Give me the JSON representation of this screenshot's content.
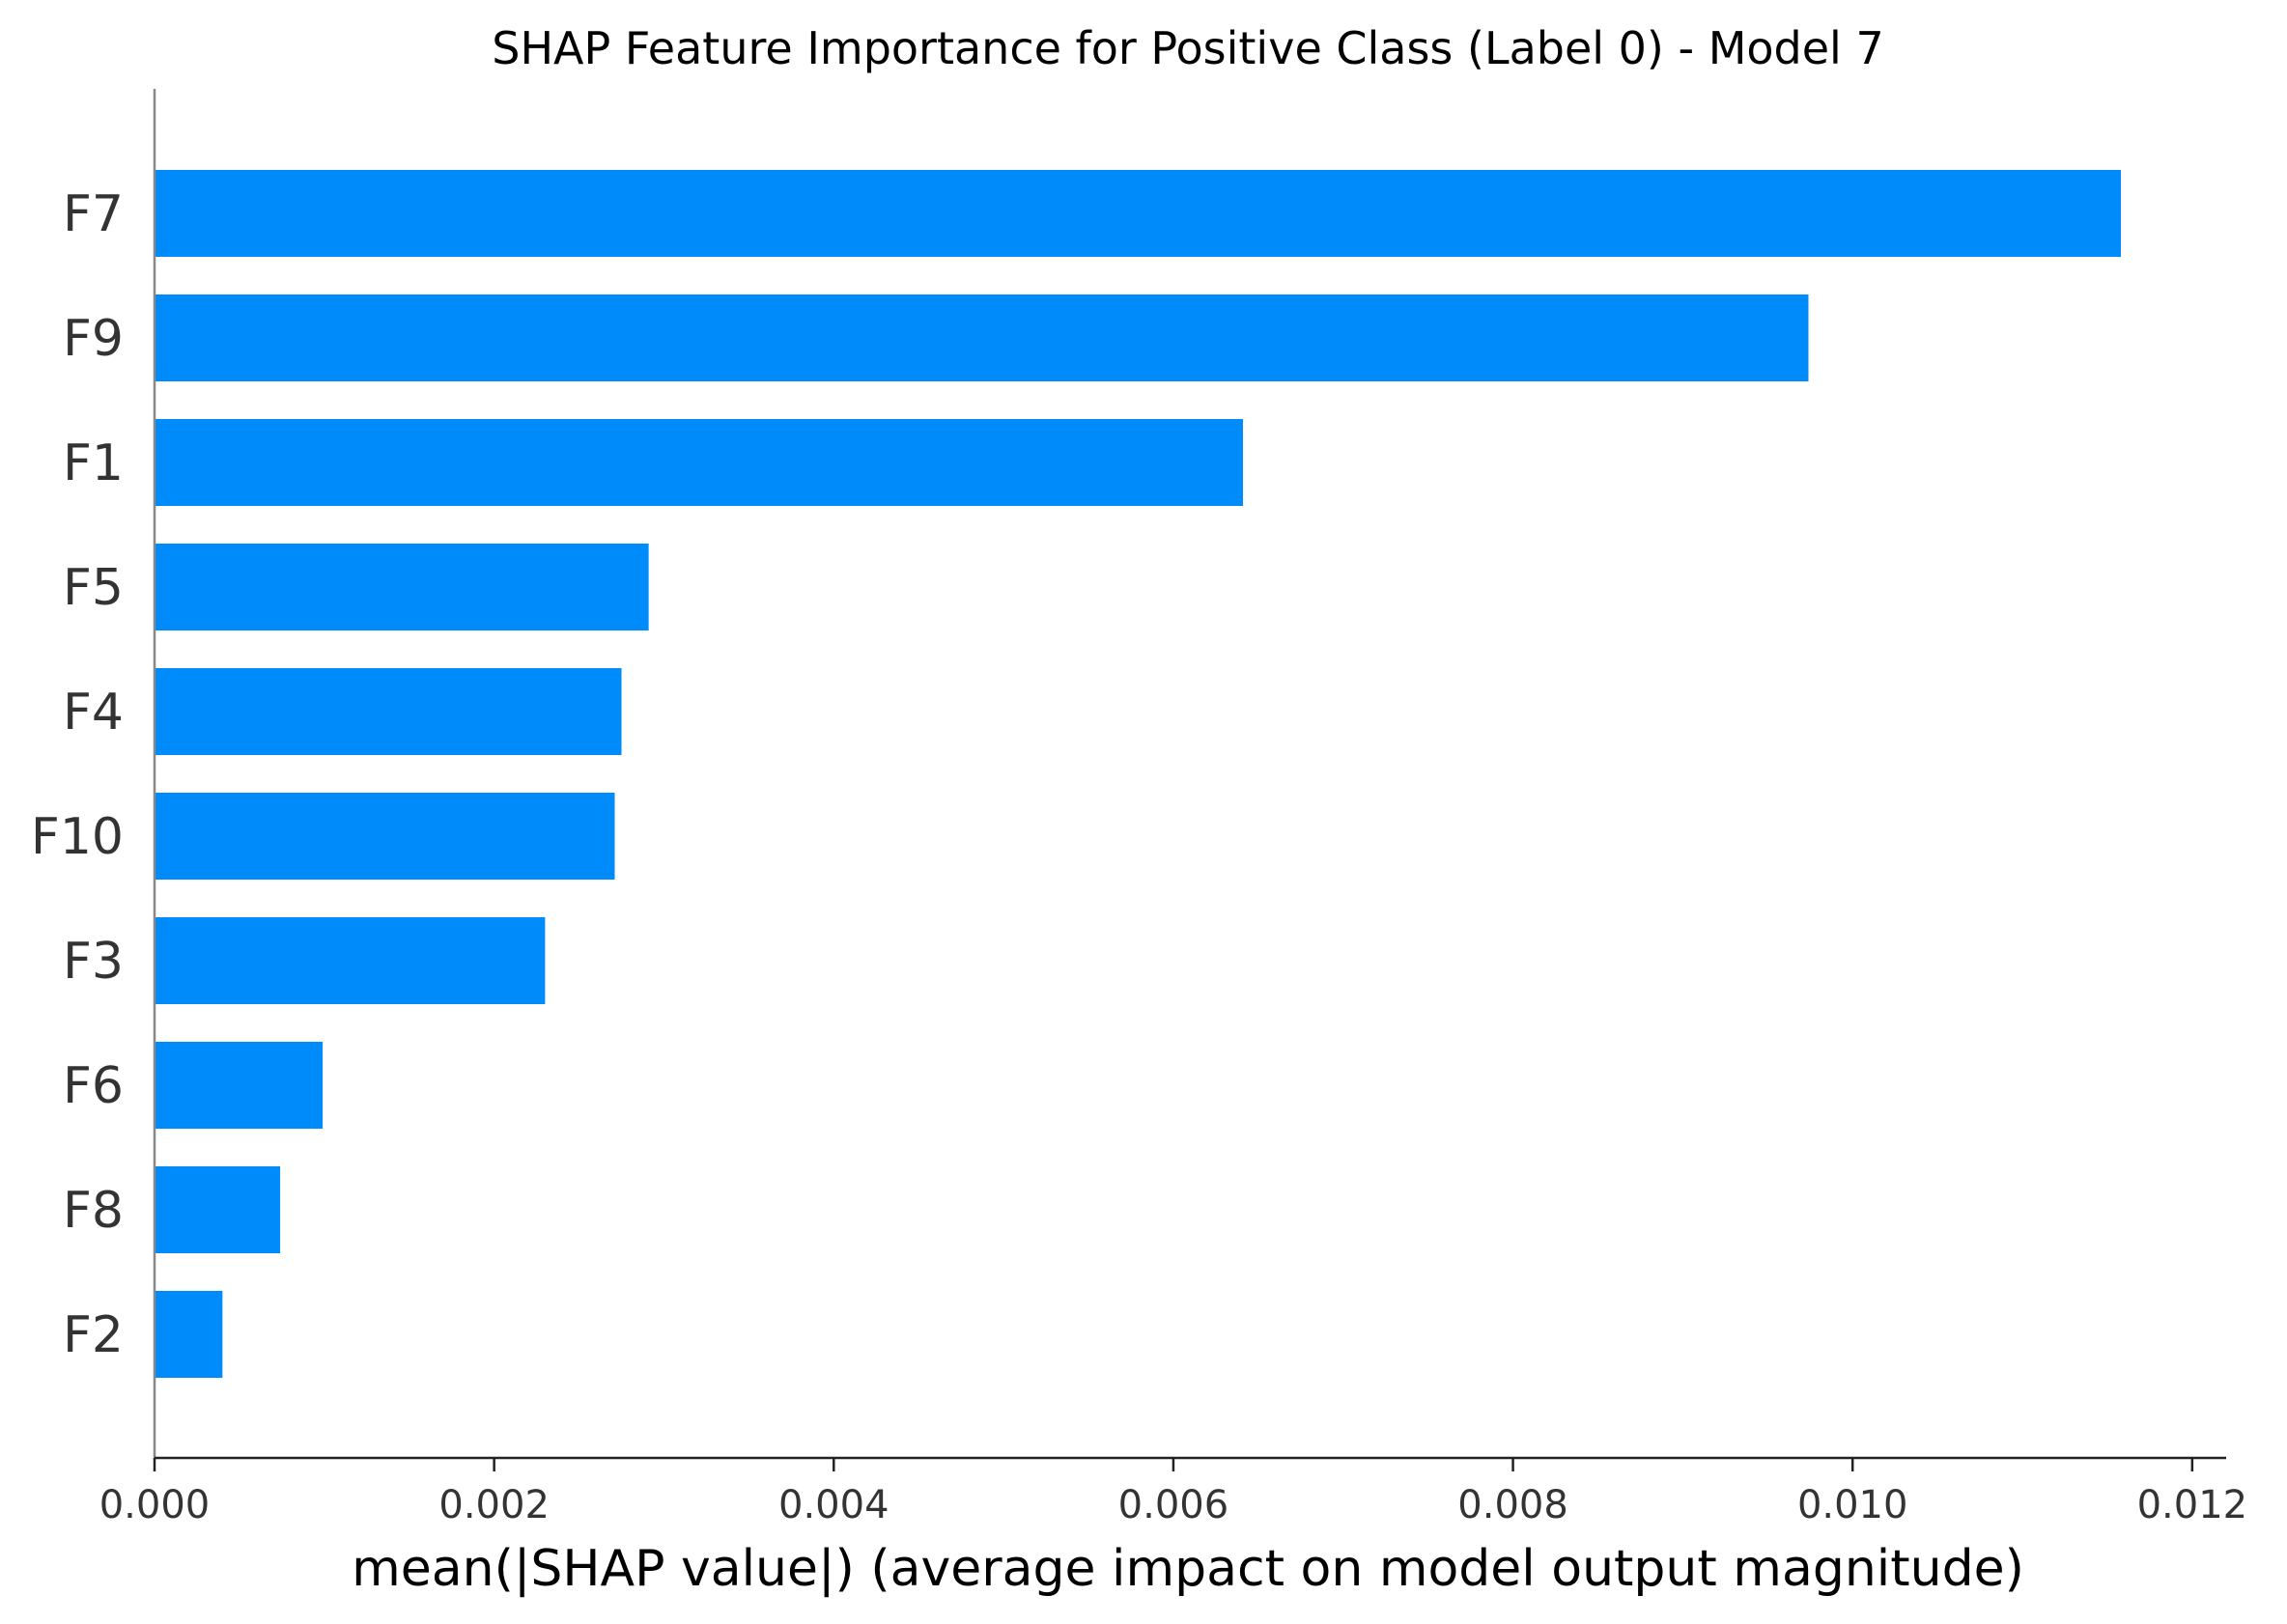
{
  "chart_data": {
    "type": "bar",
    "orientation": "horizontal",
    "title": "SHAP Feature Importance for Positive Class (Label 0) - Model 7",
    "xlabel": "mean(|SHAP value|) (average impact on model output magnitude)",
    "ylabel": "",
    "categories": [
      "F7",
      "F9",
      "F1",
      "F5",
      "F4",
      "F10",
      "F3",
      "F6",
      "F8",
      "F2"
    ],
    "values": [
      0.01158,
      0.00974,
      0.00641,
      0.00291,
      0.00275,
      0.00271,
      0.0023,
      0.00099,
      0.00074,
      0.0004
    ],
    "xlim": [
      0,
      0.0122
    ],
    "xticks": [
      "0.000",
      "0.002",
      "0.004",
      "0.006",
      "0.008",
      "0.010",
      "0.012"
    ],
    "xtick_values": [
      0,
      0.002,
      0.004,
      0.006,
      0.008,
      0.01,
      0.012
    ],
    "bar_color": "#008bfb",
    "grid": false,
    "legend": "none"
  }
}
